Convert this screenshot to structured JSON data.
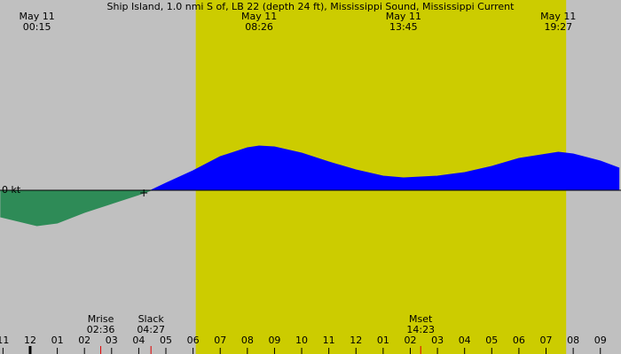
{
  "chart_data": {
    "type": "area",
    "title": "Ship Island, 1.0 nmi S of, LB 22 (depth 24 ft), Mississippi Sound, Mississippi Current",
    "x": [
      -1.1,
      0.25,
      1,
      2,
      3,
      4,
      4.45,
      5,
      6,
      7,
      8,
      8.4333,
      9,
      10,
      11,
      12,
      13,
      13.75,
      15,
      16,
      17,
      18,
      19.45,
      20,
      21,
      21.7
    ],
    "values": [
      -0.6,
      -0.8,
      -0.74,
      -0.5,
      -0.3,
      -0.1,
      0,
      0.16,
      0.44,
      0.76,
      0.96,
      1.0,
      0.98,
      0.84,
      0.64,
      0.46,
      0.32,
      0.28,
      0.32,
      0.4,
      0.54,
      0.72,
      0.86,
      0.82,
      0.66,
      0.5
    ],
    "flood_color": "#0000ff",
    "ebb_color": "#2e8b57",
    "day_color": "#cccc00",
    "night_color": "#c0c0c0",
    "daylight": [
      6.1,
      19.74
    ],
    "xlim": [
      -1.11,
      21.76
    ],
    "xticks": [
      {
        "value": -1,
        "label": "11"
      },
      {
        "value": 0,
        "label": "12"
      },
      {
        "value": 1,
        "label": "01"
      },
      {
        "value": 2,
        "label": "02"
      },
      {
        "value": 3,
        "label": "03"
      },
      {
        "value": 4,
        "label": "04"
      },
      {
        "value": 5,
        "label": "05"
      },
      {
        "value": 6,
        "label": "06"
      },
      {
        "value": 7,
        "label": "07"
      },
      {
        "value": 8,
        "label": "08"
      },
      {
        "value": 9,
        "label": "09"
      },
      {
        "value": 10,
        "label": "10"
      },
      {
        "value": 11,
        "label": "11"
      },
      {
        "value": 12,
        "label": "12"
      },
      {
        "value": 13,
        "label": "01"
      },
      {
        "value": 14,
        "label": "02"
      },
      {
        "value": 15,
        "label": "03"
      },
      {
        "value": 16,
        "label": "04"
      },
      {
        "value": 17,
        "label": "05"
      },
      {
        "value": 18,
        "label": "06"
      },
      {
        "value": 19,
        "label": "07"
      },
      {
        "value": 20,
        "label": "08"
      },
      {
        "value": 21,
        "label": "09"
      }
    ],
    "ylim": [
      -3.7,
      4.3
    ],
    "yticks": [
      {
        "value": 0,
        "label": "0 kt"
      }
    ],
    "events_top": [
      {
        "date": "May 11",
        "time": "00:15",
        "x": 0.25
      },
      {
        "date": "May 11",
        "time": "08:26",
        "x": 8.4333
      },
      {
        "date": "May 11",
        "time": "13:45",
        "x": 13.75
      },
      {
        "date": "May 11",
        "time": "19:27",
        "x": 19.45
      }
    ],
    "events_bottom": [
      {
        "label": "Mrise",
        "time": "02:36",
        "x": 2.6
      },
      {
        "label": "Slack",
        "time": "04:27",
        "x": 4.45
      },
      {
        "label": "Mset",
        "time": "14:23",
        "x": 14.3833
      }
    ]
  }
}
